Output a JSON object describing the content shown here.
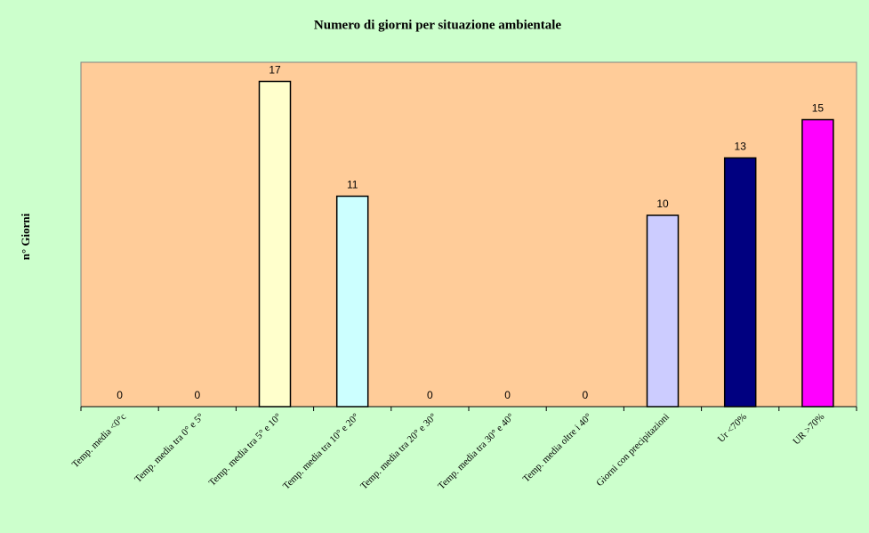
{
  "chart_data": {
    "type": "bar",
    "title": "Numero di giorni per situazione ambientale",
    "y_label": "n° Giorni",
    "categories": [
      "Temp. media <0°c",
      "Temp. media tra 0° e 5°",
      "Temp. media tra 5° e 10°",
      "Temp. media tra 10° e 20°",
      "Temp. media tra 20° e 30°",
      "Temp. media tra 30° e 40°",
      "Temp. media oltre i 40°",
      "Giorni con precipitazioni",
      "Ur <70%",
      "UR >70%"
    ],
    "values": [
      0,
      0,
      17,
      11,
      0,
      0,
      0,
      10,
      13,
      15
    ],
    "colors": [
      "#9999ff",
      "#993366",
      "#ffffcc",
      "#ccffff",
      "#660066",
      "#ff8080",
      "#0066cc",
      "#ccccff",
      "#000080",
      "#ff00ff"
    ],
    "ylim": [
      0,
      18
    ]
  }
}
